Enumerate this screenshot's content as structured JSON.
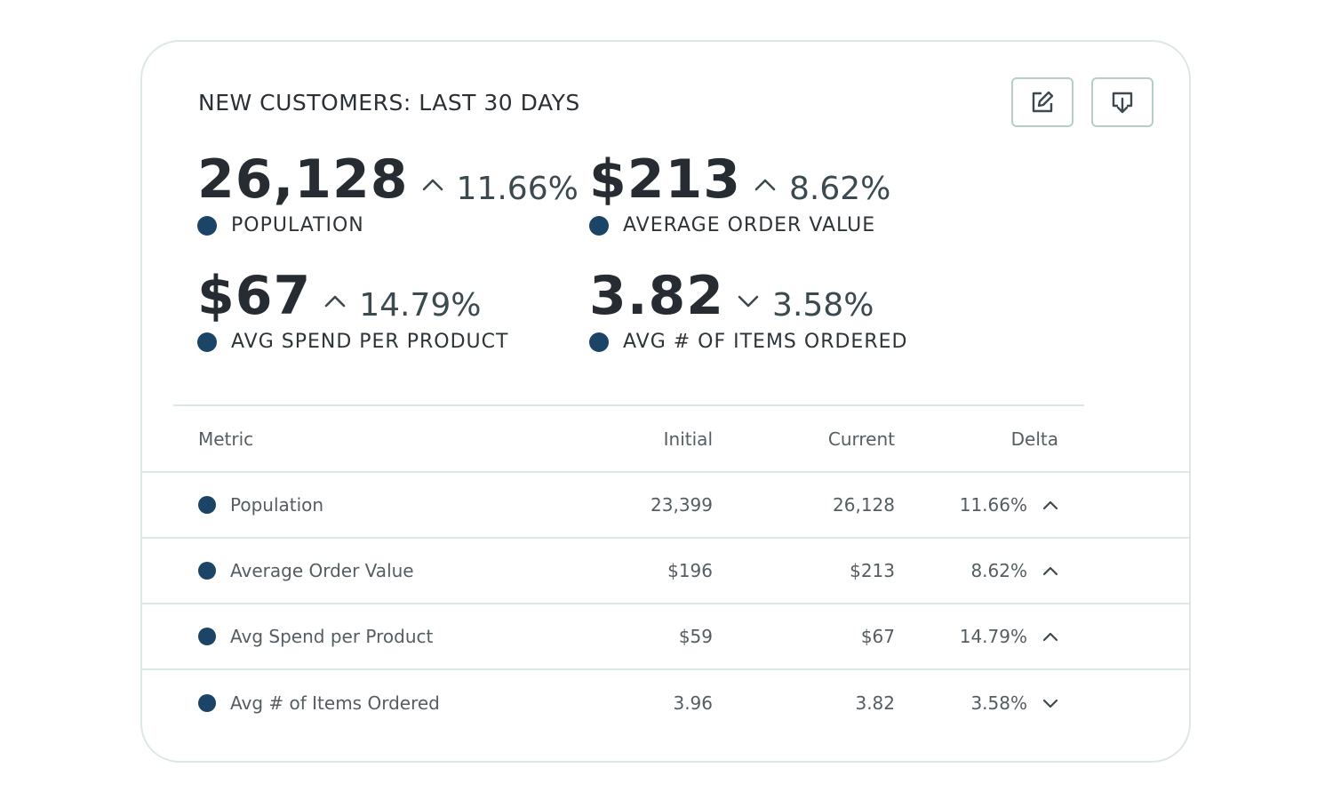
{
  "card": {
    "title": "NEW CUSTOMERS: LAST 30 DAYS",
    "actions": [
      {
        "name": "edit",
        "icon": "edit-icon"
      },
      {
        "name": "download",
        "icon": "download-icon"
      }
    ]
  },
  "colors": {
    "accent_dot": "#1c4466",
    "border": "#dde8e6",
    "text": "#2b3135"
  },
  "kpis": [
    {
      "value": "26,128",
      "change": "11.66%",
      "direction": "up",
      "label": "POPULATION"
    },
    {
      "value": "$213",
      "change": "8.62%",
      "direction": "up",
      "label": "AVERAGE ORDER VALUE"
    },
    {
      "value": "$67",
      "change": "14.79%",
      "direction": "up",
      "label": "AVG SPEND PER PRODUCT"
    },
    {
      "value": "3.82",
      "change": "3.58%",
      "direction": "down",
      "label": "AVG # OF ITEMS ORDERED"
    }
  ],
  "table": {
    "headers": {
      "metric": "Metric",
      "initial": "Initial",
      "current": "Current",
      "delta": "Delta"
    },
    "rows": [
      {
        "metric": "Population",
        "initial": "23,399",
        "current": "26,128",
        "delta": "11.66%",
        "direction": "up"
      },
      {
        "metric": "Average Order Value",
        "initial": "$196",
        "current": "$213",
        "delta": "8.62%",
        "direction": "up"
      },
      {
        "metric": "Avg Spend per Product",
        "initial": "$59",
        "current": "$67",
        "delta": "14.79%",
        "direction": "up"
      },
      {
        "metric": "Avg # of Items Ordered",
        "initial": "3.96",
        "current": "3.82",
        "delta": "3.58%",
        "direction": "down"
      }
    ]
  }
}
